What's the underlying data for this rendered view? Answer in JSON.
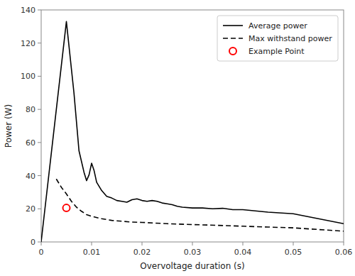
{
  "chart_data": {
    "type": "line",
    "xlabel": "Overvoltage duration (s)",
    "ylabel": "Power (W)",
    "xlim": [
      0,
      0.06
    ],
    "ylim": [
      0,
      140
    ],
    "xticks": [
      0,
      0.01,
      0.02,
      0.03,
      0.04,
      0.05,
      0.06
    ],
    "yticks": [
      0,
      20,
      40,
      60,
      80,
      100,
      120,
      140
    ],
    "grid": false,
    "legend": "upper right",
    "series": [
      {
        "name": "Average power",
        "type": "line",
        "color": "#000000",
        "line_style": "solid",
        "x": [
          0.0,
          1e-05,
          0.005,
          0.0065,
          0.0075,
          0.0085,
          0.009,
          0.0095,
          0.01,
          0.0105,
          0.011,
          0.012,
          0.013,
          0.014,
          0.015,
          0.016,
          0.017,
          0.018,
          0.019,
          0.02,
          0.021,
          0.022,
          0.023,
          0.024,
          0.025,
          0.026,
          0.027,
          0.028,
          0.03,
          0.032,
          0.034,
          0.036,
          0.038,
          0.04,
          0.045,
          0.05,
          0.055,
          0.06
        ],
        "values": [
          0.0,
          0.5,
          133.0,
          90.0,
          55.0,
          42.0,
          37.0,
          40.5,
          47.5,
          43.0,
          36.0,
          31.0,
          27.5,
          26.5,
          25.0,
          24.5,
          24.0,
          25.5,
          26.0,
          25.0,
          24.5,
          25.0,
          24.5,
          23.5,
          23.0,
          22.5,
          21.5,
          21.0,
          20.5,
          20.5,
          20.0,
          20.3,
          19.5,
          19.5,
          18.0,
          17.0,
          14.0,
          11.0
        ]
      },
      {
        "name": "Max withstand power",
        "type": "line",
        "color": "#000000",
        "line_style": "dashed",
        "x": [
          0.003,
          0.004,
          0.005,
          0.006,
          0.007,
          0.008,
          0.009,
          0.01,
          0.012,
          0.014,
          0.016,
          0.018,
          0.02,
          0.025,
          0.03,
          0.035,
          0.04,
          0.045,
          0.05,
          0.055,
          0.06
        ],
        "values": [
          38.0,
          33.0,
          29.0,
          24.5,
          21.0,
          18.5,
          16.5,
          15.5,
          14.0,
          13.0,
          12.5,
          12.0,
          11.8,
          11.0,
          10.5,
          10.0,
          9.5,
          9.0,
          8.5,
          7.5,
          6.5
        ]
      },
      {
        "name": "Example Point",
        "type": "scatter",
        "color": "#ff0000",
        "marker": "circle",
        "x": [
          0.005
        ],
        "values": [
          20.5
        ]
      }
    ]
  }
}
